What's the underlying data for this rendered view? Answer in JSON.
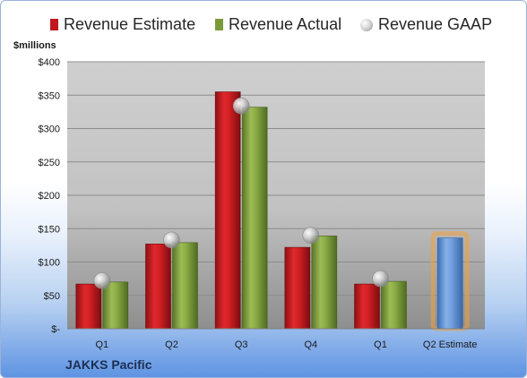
{
  "chart_data": {
    "type": "bar",
    "ylabel": "$millions",
    "ylim": [
      0,
      400
    ],
    "yticks": [
      0,
      50,
      100,
      150,
      200,
      250,
      300,
      350,
      400
    ],
    "ytick_labels": [
      "$-",
      "$50",
      "$100",
      "$150",
      "$200",
      "$250",
      "$300",
      "$350",
      "$400"
    ],
    "categories": [
      "Q1",
      "Q2",
      "Q3",
      "Q4",
      "Q1",
      "Q2 Estimate"
    ],
    "series": [
      {
        "name": "Revenue Estimate",
        "type": "bar",
        "color": "#c0181e",
        "values": [
          67,
          127,
          355,
          122,
          67,
          null
        ]
      },
      {
        "name": "Revenue Actual",
        "type": "bar",
        "color": "#7a9a3a",
        "values": [
          70,
          129,
          332,
          139,
          71,
          null
        ]
      },
      {
        "name": "Revenue GAAP",
        "type": "marker",
        "color": "#b8b8b8",
        "values": [
          72,
          133,
          334,
          140,
          75,
          null
        ]
      }
    ],
    "future_estimate": {
      "category": "Q2 Estimate",
      "value": 136,
      "color": "#5b8fd0",
      "glow_color": "#f0a040"
    },
    "grid": true,
    "legend_position": "top",
    "company": "JAKKS Pacific"
  }
}
